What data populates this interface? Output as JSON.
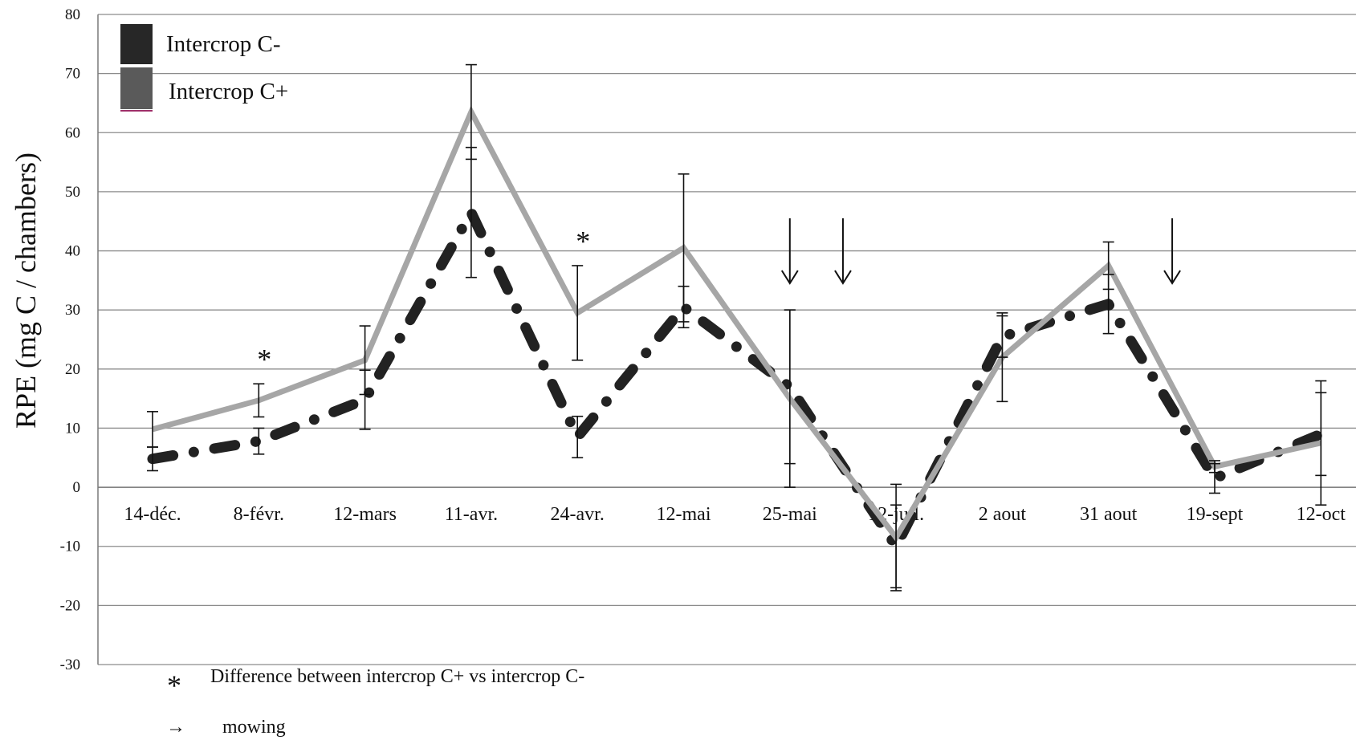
{
  "chart_data": {
    "type": "line",
    "ylabel": "RPE (mg  C / chambers)",
    "xlabel": "",
    "ylim": [
      -30,
      80
    ],
    "yticks": [
      -30,
      -20,
      -10,
      0,
      10,
      20,
      30,
      40,
      50,
      60,
      70,
      80
    ],
    "grid": true,
    "legend_position": "top-left",
    "categories": [
      "14-déc.",
      "8-févr.",
      "12-mars",
      "11-avr.",
      "24-avr.",
      "12-mai",
      "25-mai",
      "12-juil.",
      "2 aout",
      "31 aout",
      "19-sept",
      "12-oct"
    ],
    "series": [
      {
        "name": "Intercrop C-",
        "style": "dash-dot",
        "color": "#222222",
        "values": [
          4.8,
          7.8,
          14.8,
          46.5,
          8.5,
          30.5,
          17.0,
          -10.0,
          25.5,
          31.0,
          1.5,
          9.0
        ],
        "error": [
          2.0,
          2.2,
          5.0,
          11.0,
          3.5,
          3.5,
          13.0,
          7.0,
          3.5,
          5.0,
          2.5,
          7.0
        ]
      },
      {
        "name": "Intercrop C+",
        "style": "solid",
        "color": "#a6a6a6",
        "values": [
          9.8,
          14.7,
          21.5,
          63.5,
          29.5,
          40.5,
          15.0,
          -8.5,
          22.0,
          37.5,
          3.5,
          7.5
        ],
        "error": [
          3.0,
          2.8,
          5.8,
          8.0,
          8.0,
          12.5,
          15.0,
          9.0,
          7.5,
          4.0,
          1.0,
          10.5
        ]
      }
    ],
    "significance": {
      "symbol": "*",
      "categories": [
        "8-févr.",
        "24-avr."
      ]
    },
    "mowing": {
      "categories": [
        "25-mai",
        "25-mai/12-juil.",
        "31 aout/19-sept"
      ],
      "offsets": [
        0.0,
        0.5,
        0.6
      ]
    }
  },
  "notes": {
    "significance_symbol": "*",
    "significance_text": "Difference between intercrop C+ vs intercrop C-",
    "mowing_symbol": "→",
    "mowing_text": "mowing"
  }
}
